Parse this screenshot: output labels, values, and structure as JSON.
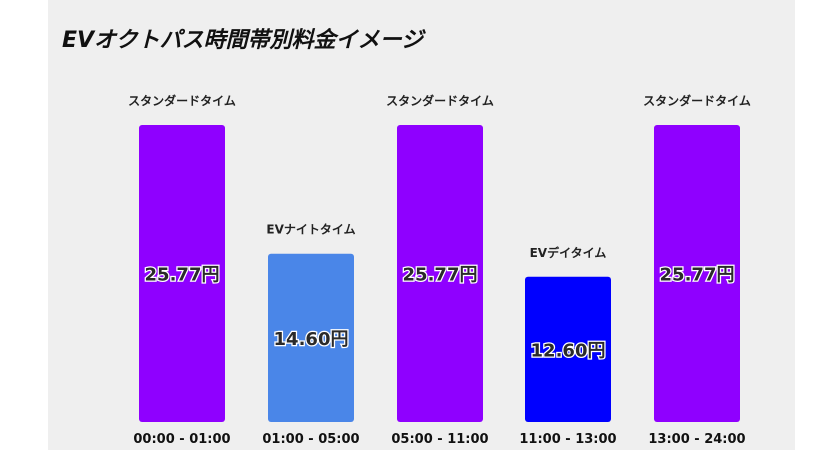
{
  "chart_data": {
    "type": "bar",
    "title": "EVオクトパス時間帯別料金イメージ",
    "categories": [
      "00:00 - 01:00",
      "01:00 - 05:00",
      "05:00 - 11:00",
      "11:00 - 13:00",
      "13:00 - 24:00"
    ],
    "bar_labels": [
      "スタンダードタイム",
      "EVナイトタイム",
      "スタンダードタイム",
      "EVデイタイム",
      "スタンダードタイム"
    ],
    "values": [
      25.77,
      14.6,
      25.77,
      12.6,
      25.77
    ],
    "value_labels": [
      "25.77円",
      "14.60円",
      "25.77円",
      "12.60円",
      "25.77円"
    ],
    "colors": [
      "#8f00ff",
      "#4a86e8",
      "#8f00ff",
      "#0000ff",
      "#8f00ff"
    ],
    "xlabel": "",
    "ylabel": "",
    "ylim": [
      0,
      25.77
    ],
    "grid": false
  }
}
